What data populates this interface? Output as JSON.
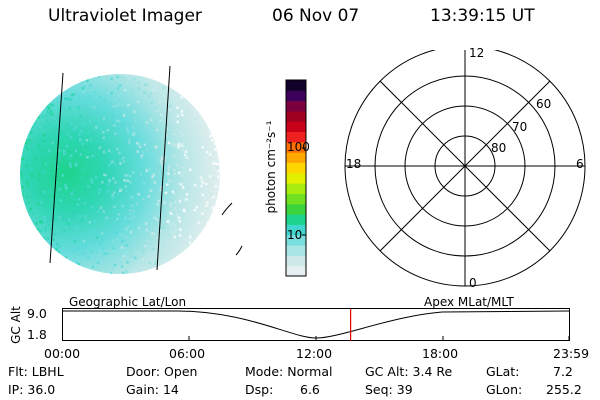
{
  "header": {
    "title": "Ultraviolet Imager",
    "date": "06 Nov 07",
    "time": "13:39:15 UT"
  },
  "colorbar": {
    "label": "photon cm⁻²s⁻¹",
    "ticks": [
      "100",
      "10"
    ],
    "colors": [
      "#e6f0f0",
      "#cfe9e9",
      "#aae5e5",
      "#79dede",
      "#41d6cd",
      "#1ed48c",
      "#3cd43c",
      "#70e020",
      "#a8ec10",
      "#e2f000",
      "#ffd700",
      "#ffa800",
      "#ff7000",
      "#ef2020",
      "#c80018",
      "#a00020",
      "#7a0040",
      "#3a005a",
      "#10002a"
    ]
  },
  "polar": {
    "labels": {
      "top": "12",
      "left": "18",
      "right": "6",
      "bottom": "0"
    },
    "rings": [
      "60",
      "70",
      "80"
    ]
  },
  "timeline": {
    "ylabel": "GC Alt",
    "yticks": [
      "9.0",
      "1.8"
    ],
    "left_label": "Geographic Lat/Lon",
    "right_label": "Apex MLat/MLT",
    "xticks": [
      "00:00",
      "06:00",
      "12:00",
      "18:00",
      "23:59"
    ],
    "marker_time_hours": 13.654
  },
  "info": {
    "row1": [
      {
        "label": "Flt:",
        "value": "LBHL"
      },
      {
        "label": "Door:",
        "value": "Open"
      },
      {
        "label": "Mode:",
        "value": "Normal"
      },
      {
        "label": "GC Alt:",
        "value": "3.4 Re"
      },
      {
        "label": "GLat:",
        "value": "7.2"
      }
    ],
    "row2": [
      {
        "label": "IP:",
        "value": "36.0"
      },
      {
        "label": "Gain:",
        "value": "14"
      },
      {
        "label": "Dsp:",
        "value": "6.6"
      },
      {
        "label": "Seq:",
        "value": "39"
      },
      {
        "label": "GLon:",
        "value": "255.2"
      }
    ]
  }
}
